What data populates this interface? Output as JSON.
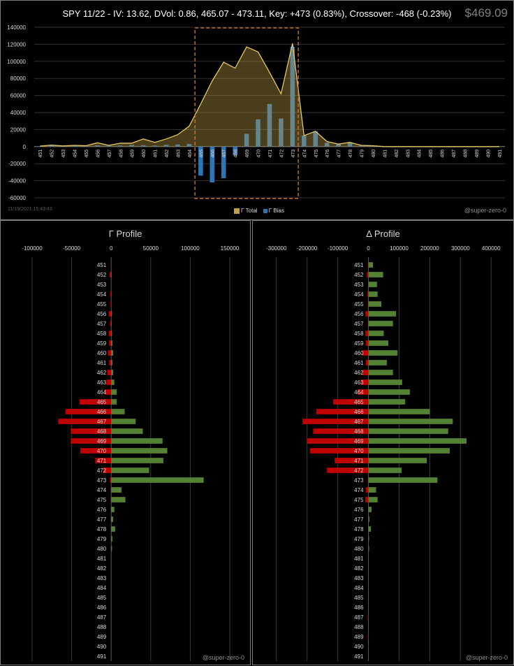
{
  "header": {
    "title": "SPY 11/22 - IV: 13.62, DVol: 0.86, 465.07 - 473.11, Key: +473 (0.83%), Crossover: -468 (-0.23%)",
    "price": "$469.09",
    "timestamp": "11/19/2021 15:43:43",
    "credit": "@super-zero-0"
  },
  "colors": {
    "total": "#bfa14a",
    "bias": "#2e75b6",
    "positive": "#548235",
    "negative": "#c00000",
    "highlight": "#e0782e"
  },
  "chart_data": [
    {
      "type": "area",
      "title": "SPY 11/22 - IV: 13.62, DVol: 0.86, 465.07 - 473.11, Key: +473 (0.83%), Crossover: -468 (-0.23%)",
      "categories": [
        "451",
        "452",
        "453",
        "454",
        "455",
        "456",
        "457",
        "458",
        "459",
        "460",
        "461",
        "462",
        "463",
        "464",
        "465",
        "466",
        "467",
        "468",
        "469",
        "470",
        "471",
        "472",
        "473",
        "474",
        "475",
        "476",
        "477",
        "478",
        "479",
        "480",
        "481",
        "482",
        "483",
        "484",
        "485",
        "486",
        "487",
        "488",
        "489",
        "490",
        "491"
      ],
      "series": [
        {
          "name": "Γ Total",
          "kind": "area",
          "values": [
            600,
            1800,
            800,
            1500,
            1000,
            4500,
            1500,
            4000,
            4000,
            9000,
            5000,
            9000,
            14000,
            24000,
            50000,
            77000,
            99000,
            92000,
            117000,
            111000,
            87000,
            62000,
            121000,
            13000,
            18000,
            6000,
            3000,
            5000,
            1500,
            1000,
            0,
            0,
            0,
            0,
            0,
            0,
            0,
            0,
            0,
            0,
            0
          ]
        },
        {
          "name": "Γ Bias",
          "kind": "bar",
          "values": [
            300,
            1500,
            300,
            1400,
            500,
            1500,
            1000,
            1200,
            2000,
            1500,
            1200,
            2000,
            2500,
            3000,
            -34000,
            -42000,
            -37000,
            -10000,
            15000,
            32000,
            50000,
            33000,
            117000,
            13000,
            18000,
            4500,
            3000,
            5000,
            1000,
            300,
            0,
            0,
            0,
            0,
            0,
            0,
            0,
            0,
            0,
            0,
            0
          ]
        }
      ],
      "ylim": [
        -60000,
        140000
      ],
      "yticks": [
        "140000",
        "120000",
        "100000",
        "80000",
        "60000",
        "40000",
        "20000",
        "0",
        "-20000",
        "-40000",
        "-60000"
      ],
      "highlight_range": [
        "465",
        "473"
      ],
      "grid": true,
      "legend": "bottom"
    },
    {
      "type": "bar",
      "orientation": "horizontal",
      "title": "Γ Profile",
      "categories": [
        "451",
        "452",
        "453",
        "454",
        "455",
        "456",
        "457",
        "458",
        "459",
        "460",
        "461",
        "462",
        "463",
        "464",
        "465",
        "466",
        "467",
        "468",
        "469",
        "470",
        "471",
        "472",
        "473",
        "474",
        "475",
        "476",
        "477",
        "478",
        "479",
        "480",
        "481",
        "482",
        "483",
        "484",
        "485",
        "486",
        "487",
        "488",
        "489",
        "490",
        "491"
      ],
      "series": [
        {
          "kind": "negative",
          "values": [
            -300,
            -2000,
            -300,
            -1000,
            -800,
            -3000,
            -1000,
            -3000,
            -2500,
            -4000,
            -2500,
            -5000,
            -6000,
            -8000,
            -40000,
            -58000,
            -67000,
            -51000,
            -51000,
            -39000,
            -20000,
            -10000,
            -1500,
            -300,
            -300,
            0,
            0,
            0,
            0,
            0,
            0,
            0,
            0,
            0,
            0,
            0,
            0,
            0,
            0,
            0,
            0
          ]
        },
        {
          "kind": "positive",
          "values": [
            0,
            500,
            0,
            300,
            0,
            1000,
            500,
            1000,
            1500,
            2500,
            1500,
            2500,
            4000,
            7000,
            7000,
            17000,
            31000,
            40000,
            65000,
            71000,
            66000,
            48000,
            117000,
            13000,
            18000,
            4000,
            2500,
            5000,
            1500,
            1000,
            0,
            0,
            0,
            0,
            0,
            0,
            0,
            0,
            0,
            0,
            0
          ]
        }
      ],
      "xlim": [
        -115000,
        165000
      ],
      "xticks": [
        "-100000",
        "-50000",
        "0",
        "50000",
        "100000",
        "150000"
      ],
      "grid": true
    },
    {
      "type": "bar",
      "orientation": "horizontal",
      "title": "Δ Profile",
      "categories": [
        "451",
        "452",
        "453",
        "454",
        "455",
        "456",
        "457",
        "458",
        "459",
        "460",
        "461",
        "462",
        "463",
        "464",
        "465",
        "466",
        "467",
        "468",
        "469",
        "470",
        "471",
        "472",
        "473",
        "474",
        "475",
        "476",
        "477",
        "478",
        "479",
        "480",
        "481",
        "482",
        "483",
        "484",
        "485",
        "486",
        "487",
        "488",
        "489",
        "490",
        "491"
      ],
      "series": [
        {
          "kind": "negative",
          "values": [
            -2000,
            -5000,
            -1500,
            -3000,
            -2000,
            -10000,
            -2000,
            -10000,
            -8000,
            -20000,
            -8000,
            -20000,
            -25000,
            -35000,
            -115000,
            -170000,
            -215000,
            -180000,
            -200000,
            -190000,
            -110000,
            -135000,
            -2000,
            -8000,
            -10000,
            0,
            0,
            0,
            0,
            0,
            0,
            0,
            0,
            0,
            0,
            0,
            -2000,
            0,
            -2000,
            0,
            0
          ]
        },
        {
          "kind": "positive",
          "values": [
            15000,
            48000,
            28000,
            30000,
            42000,
            90000,
            80000,
            50000,
            65000,
            95000,
            60000,
            80000,
            110000,
            135000,
            120000,
            200000,
            275000,
            260000,
            320000,
            265000,
            190000,
            108000,
            225000,
            25000,
            30000,
            10000,
            3000,
            8000,
            2000,
            2000,
            0,
            0,
            0,
            0,
            0,
            0,
            0,
            0,
            0,
            0,
            0
          ]
        }
      ],
      "xlim": [
        -345000,
        445000
      ],
      "xticks": [
        "-300000",
        "-200000",
        "-100000",
        "0",
        "100000",
        "200000",
        "300000",
        "400000"
      ],
      "grid": true
    }
  ]
}
